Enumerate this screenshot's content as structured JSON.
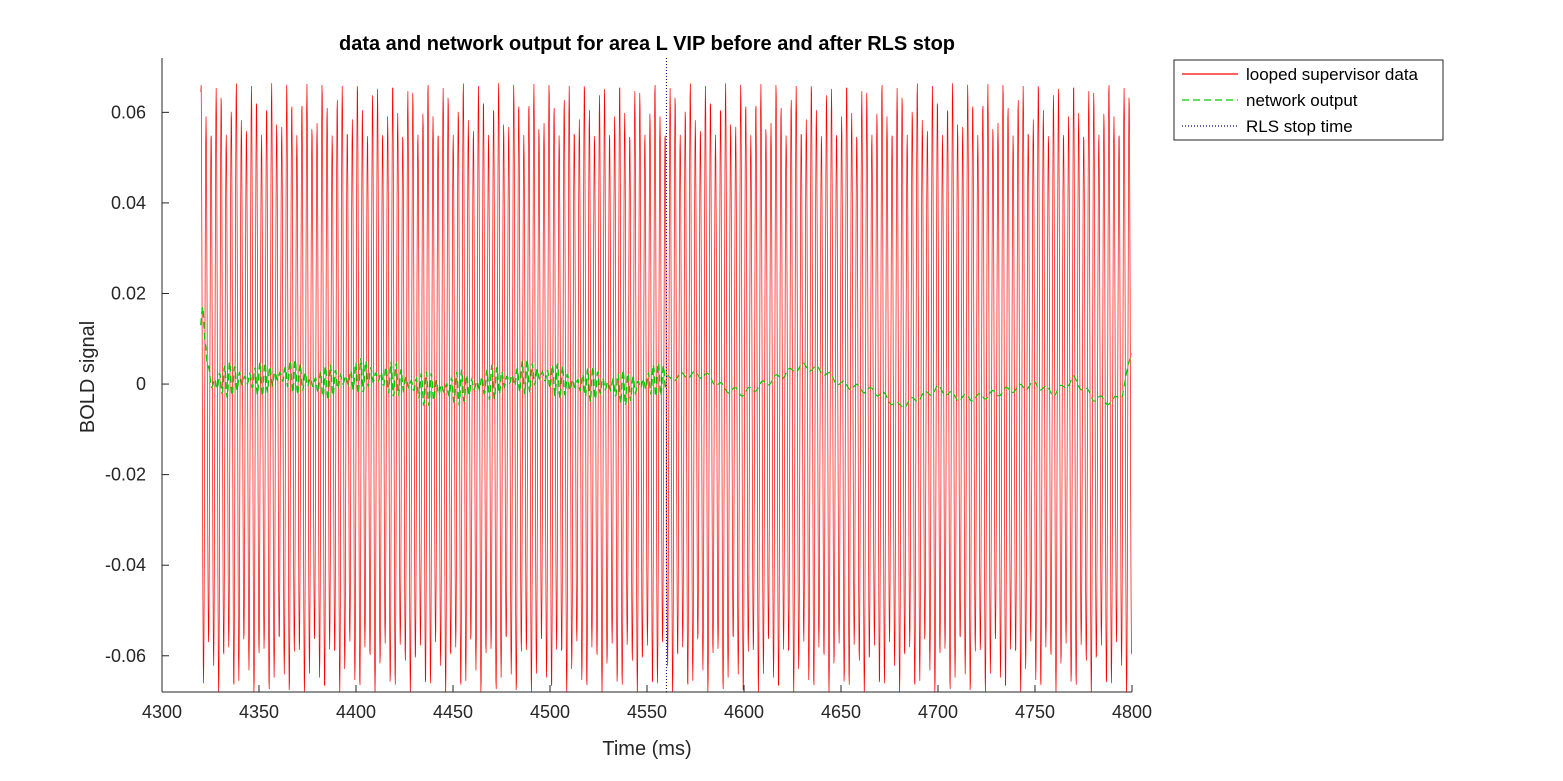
{
  "chart_data": {
    "type": "line",
    "title": "data and network output for area L VIP before and after RLS stop",
    "xlabel": "Time (ms)",
    "ylabel": "BOLD signal",
    "xlim": [
      4300,
      4800
    ],
    "ylim": [
      -0.068,
      0.072
    ],
    "x_ticks": [
      4300,
      4350,
      4400,
      4450,
      4500,
      4550,
      4600,
      4650,
      4700,
      4750,
      4800
    ],
    "x_tick_labels": [
      "4300",
      "4350",
      "4400",
      "4450",
      "4500",
      "4550",
      "4600",
      "4650",
      "4700",
      "4750",
      "4800"
    ],
    "y_ticks": [
      -0.06,
      -0.04,
      -0.02,
      0,
      0.02,
      0.04,
      0.06
    ],
    "y_tick_labels": [
      "-0.06",
      "-0.04",
      "-0.02",
      "0",
      "0.02",
      "0.04",
      "0.06"
    ],
    "grid": false,
    "legend_position": "outside-top-right",
    "rls_stop_time": 4560,
    "series": [
      {
        "name": "looped supervisor data",
        "color": "#ff0000",
        "style": "solid",
        "x_start": 4320,
        "x_end": 4800,
        "oscillation_period_ms": 2.6,
        "amplitude_range": [
          0.056,
          0.068
        ],
        "amplitude_beat_period_ms": 9
      },
      {
        "name": "network output",
        "color": "#00cc00",
        "style": "dashed",
        "x": [
          4320,
          4321,
          4322,
          4325,
          4335,
          4350,
          4365,
          4380,
          4395,
          4405,
          4420,
          4435,
          4450,
          4465,
          4480,
          4495,
          4510,
          4525,
          4540,
          4555,
          4560,
          4570,
          4580,
          4590,
          4600,
          4610,
          4620,
          4630,
          4640,
          4650,
          4660,
          4670,
          4680,
          4690,
          4700,
          4710,
          4720,
          4730,
          4740,
          4750,
          4760,
          4770,
          4780,
          4790,
          4795,
          4800
        ],
        "y": [
          0.013,
          0.018,
          0.01,
          0.0,
          0.001,
          0.001,
          0.002,
          0.0,
          0.001,
          0.002,
          0.001,
          -0.001,
          -0.001,
          0.0,
          0.001,
          0.002,
          0.0,
          0.0,
          -0.001,
          0.001,
          0.001,
          0.002,
          0.002,
          -0.001,
          -0.002,
          0.0,
          0.002,
          0.004,
          0.003,
          0.0,
          -0.001,
          -0.002,
          -0.005,
          -0.003,
          -0.001,
          -0.003,
          -0.003,
          -0.002,
          -0.001,
          0.0,
          -0.002,
          0.001,
          -0.003,
          -0.004,
          -0.002,
          0.007
        ],
        "jitter_before_rls": 0.004
      },
      {
        "name": "RLS stop time",
        "color": "#000080",
        "style": "dotted",
        "x": [
          4560,
          4560
        ],
        "y": [
          -0.068,
          0.072
        ]
      }
    ]
  }
}
